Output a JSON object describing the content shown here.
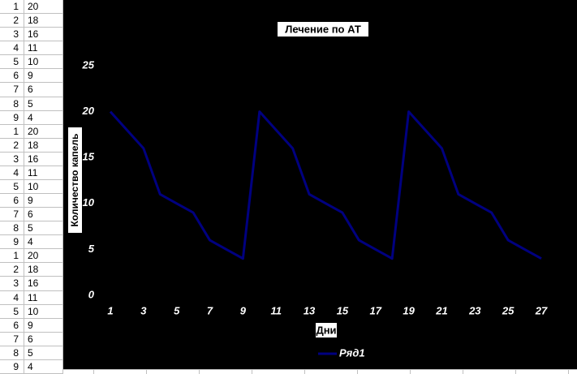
{
  "table": {
    "rows": [
      [
        1,
        20
      ],
      [
        2,
        18
      ],
      [
        3,
        16
      ],
      [
        4,
        11
      ],
      [
        5,
        10
      ],
      [
        6,
        9
      ],
      [
        7,
        6
      ],
      [
        8,
        5
      ],
      [
        9,
        4
      ],
      [
        1,
        20
      ],
      [
        2,
        18
      ],
      [
        3,
        16
      ],
      [
        4,
        11
      ],
      [
        5,
        10
      ],
      [
        6,
        9
      ],
      [
        7,
        6
      ],
      [
        8,
        5
      ],
      [
        9,
        4
      ],
      [
        1,
        20
      ],
      [
        2,
        18
      ],
      [
        3,
        16
      ],
      [
        4,
        11
      ],
      [
        5,
        10
      ],
      [
        6,
        9
      ],
      [
        7,
        6
      ],
      [
        8,
        5
      ],
      [
        9,
        4
      ]
    ]
  },
  "chart_data": {
    "type": "line",
    "title": "Лечение по АТ",
    "x_label": "Дни",
    "y_label": "Количество капель",
    "x": [
      1,
      2,
      3,
      4,
      5,
      6,
      7,
      8,
      9,
      10,
      11,
      12,
      13,
      14,
      15,
      16,
      17,
      18,
      19,
      20,
      21,
      22,
      23,
      24,
      25,
      26,
      27
    ],
    "series": [
      {
        "name": "Ряд1",
        "color": "#000080",
        "values": [
          20,
          18,
          16,
          11,
          10,
          9,
          6,
          5,
          4,
          20,
          18,
          16,
          11,
          10,
          9,
          6,
          5,
          4,
          20,
          18,
          16,
          11,
          10,
          9,
          6,
          5,
          4
        ]
      }
    ],
    "xlim": [
      1,
      27
    ],
    "xticks": [
      1,
      3,
      5,
      7,
      9,
      11,
      13,
      15,
      17,
      19,
      21,
      23,
      25,
      27
    ],
    "ylim": [
      0,
      25
    ],
    "yticks": [
      0,
      5,
      10,
      15,
      20,
      25
    ],
    "legend": "bottom"
  }
}
